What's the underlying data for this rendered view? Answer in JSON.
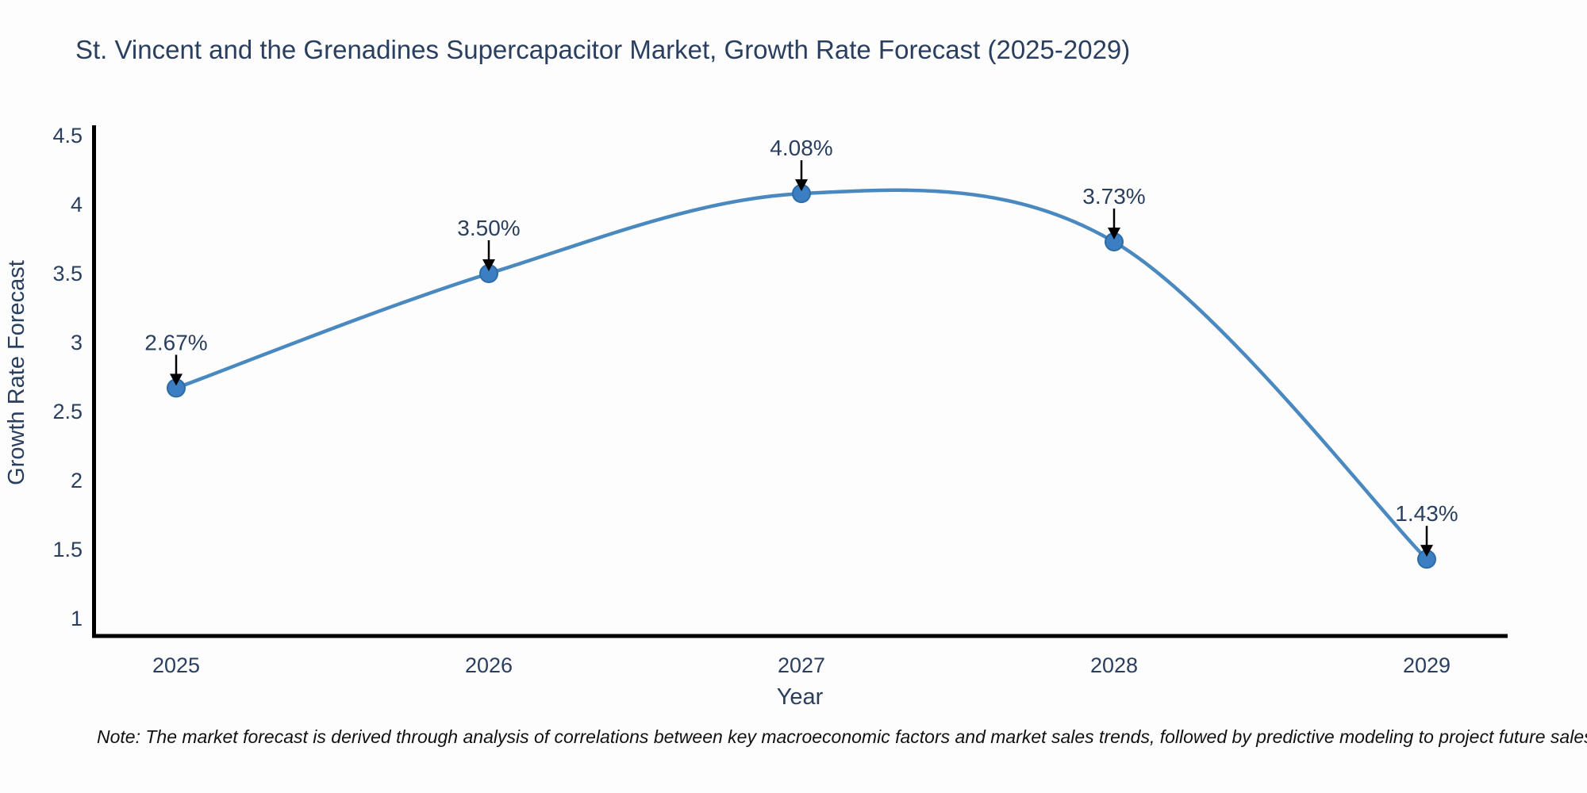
{
  "chart_data": {
    "type": "line",
    "title": "St. Vincent and the Grenadines Supercapacitor Market, Growth Rate Forecast (2025-2029)",
    "xlabel": "Year",
    "ylabel": "Growth Rate Forecast",
    "x": [
      2025,
      2026,
      2027,
      2028,
      2029
    ],
    "y": [
      2.67,
      3.5,
      4.08,
      3.73,
      1.43
    ],
    "point_labels": [
      "2.67%",
      "3.50%",
      "4.08%",
      "3.73%",
      "1.43%"
    ],
    "xtick_labels": [
      "2025",
      "2026",
      "2027",
      "2028",
      "2029"
    ],
    "ytick_labels": [
      "1",
      "1.5",
      "2",
      "2.5",
      "3",
      "3.5",
      "4",
      "4.5"
    ],
    "yticks": [
      1,
      1.5,
      2,
      2.5,
      3,
      3.5,
      4,
      4.5
    ],
    "ylim": [
      0.9,
      4.58
    ],
    "grid": false,
    "legend": false,
    "line_shape": "spline",
    "line_color": "#4a89c0",
    "marker_color": "#3b7fc2",
    "marker_edge_color": "#2e6ca6",
    "annotation_arrow_color": "#000000",
    "axis_color": "#000000",
    "text_color": "#2a3f5f"
  },
  "note": {
    "text": "Note: The market forecast is derived through analysis of correlations between key macroeconomic factors and market sales trends, followed by predictive modeling to project future sales"
  }
}
